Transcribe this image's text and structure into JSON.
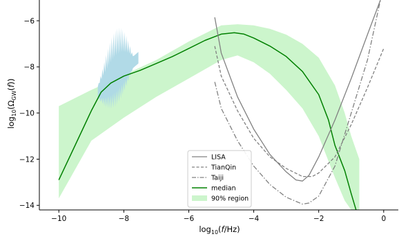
{
  "chart_data": {
    "type": "line",
    "title": "",
    "xlabel": "log$_{10}$($f$/Hz)",
    "ylabel": "log$_{10}$($\\Omega_{\\rm GW}(f)$)",
    "xlabel_parts": {
      "pre": "log",
      "sub": "10",
      "post_open": "(",
      "italic": "f",
      "post": "/Hz)"
    },
    "ylabel_parts": {
      "pre": "log",
      "sub": "10",
      "post_open": "(Ω",
      "sub2": "GW",
      "post_mid": "(",
      "italic": "f",
      "post": "))"
    },
    "xlim": [
      -10.6,
      0.45
    ],
    "ylim": [
      -14.2,
      -5.1
    ],
    "x_ticks": [
      -10,
      -8,
      -6,
      -4,
      -2,
      0
    ],
    "x_tick_labels": [
      "−10",
      "−8",
      "−6",
      "−4",
      "−2",
      "0"
    ],
    "y_ticks": [
      -14,
      -12,
      -10,
      -8,
      -6
    ],
    "y_tick_labels": [
      "−14",
      "−12",
      "−10",
      "−8",
      "−6"
    ],
    "grid": false,
    "legend": {
      "placement": "bottom-center",
      "entries": [
        {
          "label": "LISA",
          "style": "solid",
          "color": "#808080"
        },
        {
          "label": "TianQin",
          "style": "dashed",
          "color": "#808080"
        },
        {
          "label": "Taiji",
          "style": "dashdot",
          "color": "#808080"
        },
        {
          "label": "median",
          "style": "solid",
          "color": "#008000"
        },
        {
          "label": "90% region",
          "style": "fill",
          "color": "#ccf5cc"
        }
      ]
    },
    "series": [
      {
        "name": "median",
        "color": "#008000",
        "x": [
          -10,
          -9.5,
          -9.0,
          -8.7,
          -8.4,
          -8.0,
          -7.5,
          -7.0,
          -6.5,
          -6.0,
          -5.5,
          -5.0,
          -4.6,
          -4.3,
          -4.0,
          -3.5,
          -3.0,
          -2.5,
          -2.0,
          -1.7,
          -1.5,
          -1.2,
          -1.0,
          -0.85
        ],
        "y": [
          -12.9,
          -11.4,
          -9.9,
          -9.1,
          -8.7,
          -8.4,
          -8.15,
          -7.85,
          -7.55,
          -7.2,
          -6.85,
          -6.58,
          -6.52,
          -6.58,
          -6.75,
          -7.1,
          -7.55,
          -8.2,
          -9.2,
          -10.3,
          -11.4,
          -12.5,
          -13.5,
          -14.2
        ]
      },
      {
        "name": "LISA",
        "color": "#808080",
        "style": "solid",
        "x": [
          -5.2,
          -5.0,
          -4.5,
          -4.0,
          -3.5,
          -3.0,
          -2.7,
          -2.5,
          -2.3,
          -2.0,
          -1.5,
          -1.0,
          -0.5,
          -0.1
        ],
        "y": [
          -5.85,
          -7.4,
          -9.3,
          -10.7,
          -11.8,
          -12.55,
          -12.9,
          -12.95,
          -12.7,
          -11.9,
          -10.3,
          -8.5,
          -6.6,
          -5.1
        ]
      },
      {
        "name": "TianQin",
        "color": "#808080",
        "style": "dashed",
        "x": [
          -5.2,
          -5.0,
          -4.5,
          -4.0,
          -3.5,
          -3.0,
          -2.5,
          -2.2,
          -2.0,
          -1.5,
          -1.0,
          -0.5,
          0.0
        ],
        "y": [
          -7.1,
          -8.4,
          -9.9,
          -11.1,
          -11.9,
          -12.4,
          -12.75,
          -12.75,
          -12.6,
          -11.9,
          -10.5,
          -8.9,
          -7.2
        ]
      },
      {
        "name": "Taiji",
        "color": "#808080",
        "style": "dashdot",
        "x": [
          -5.2,
          -5.0,
          -4.5,
          -4.0,
          -3.5,
          -3.0,
          -2.5,
          -2.3,
          -2.0,
          -1.5,
          -1.0,
          -0.5,
          -0.1
        ],
        "y": [
          -8.65,
          -9.8,
          -11.2,
          -12.3,
          -13.1,
          -13.65,
          -13.95,
          -13.9,
          -13.6,
          -12.3,
          -10.0,
          -7.7,
          -5.1
        ]
      }
    ],
    "band": {
      "name": "90% region",
      "color": "#ccf5cc",
      "x": [
        -10,
        -9.0,
        -8.0,
        -7.0,
        -6.0,
        -5.0,
        -4.5,
        -4.0,
        -3.5,
        -3.0,
        -2.5,
        -2.0,
        -1.5,
        -1.2,
        -1.0,
        -0.75
      ],
      "upper": [
        -9.7,
        -9.0,
        -8.35,
        -7.7,
        -6.9,
        -6.2,
        -6.15,
        -6.2,
        -6.35,
        -6.6,
        -7.0,
        -7.6,
        -8.8,
        -10.0,
        -11.0,
        -12.0
      ],
      "lower": [
        -13.7,
        -11.2,
        -10.2,
        -9.3,
        -8.5,
        -7.7,
        -7.5,
        -7.8,
        -8.3,
        -9.0,
        -9.8,
        -11.0,
        -12.8,
        -13.8,
        -14.2,
        -14.2
      ]
    },
    "pta_band": {
      "color": "#add8e6",
      "x_range": [
        -8.8,
        -7.55
      ],
      "y_range": [
        -10.9,
        -5.9
      ]
    }
  }
}
